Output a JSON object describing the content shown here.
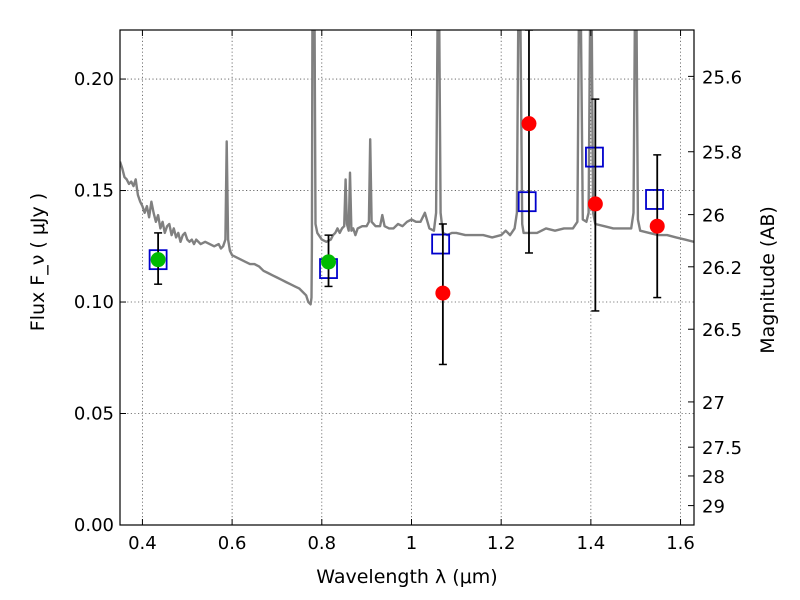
{
  "chart_data": {
    "type": "scatter",
    "title": "",
    "xlabel": "Wavelength  λ (μm)",
    "ylabel": "Flux  F_ν  ( μJy )",
    "ylabel_right": "Magnitude (AB)",
    "xlim": [
      0.35,
      1.63
    ],
    "ylim": [
      0.0,
      0.222
    ],
    "grid": true,
    "x_ticks": [
      0.4,
      0.6,
      0.8,
      1.0,
      1.2,
      1.4,
      1.6
    ],
    "x_tick_labels": [
      "0.4",
      "0.6",
      "0.8",
      "1",
      "1.2",
      "1.4",
      "1.6"
    ],
    "y_ticks": [
      0.0,
      0.05,
      0.1,
      0.15,
      0.2
    ],
    "y_tick_labels": [
      "0.00",
      "0.05",
      "0.10",
      "0.15",
      "0.20"
    ],
    "right_ticks": [
      {
        "label": "25.6",
        "flux": 0.2012
      },
      {
        "label": "25.8",
        "flux": 0.1674
      },
      {
        "label": "26",
        "flux": 0.1392
      },
      {
        "label": "26.2",
        "flux": 0.1158
      },
      {
        "label": "26.5",
        "flux": 0.0878
      },
      {
        "label": "27",
        "flux": 0.0552
      },
      {
        "label": "27.5",
        "flux": 0.0349
      },
      {
        "label": "28",
        "flux": 0.022
      },
      {
        "label": "29",
        "flux": 0.0087
      }
    ],
    "series": [
      {
        "kind": "spectrum",
        "color": "#808080",
        "points": [
          [
            0.35,
            0.163
          ],
          [
            0.355,
            0.16
          ],
          [
            0.36,
            0.156
          ],
          [
            0.365,
            0.155
          ],
          [
            0.37,
            0.153
          ],
          [
            0.375,
            0.154
          ],
          [
            0.38,
            0.152
          ],
          [
            0.385,
            0.155
          ],
          [
            0.39,
            0.148
          ],
          [
            0.395,
            0.145
          ],
          [
            0.4,
            0.143
          ],
          [
            0.405,
            0.14
          ],
          [
            0.41,
            0.143
          ],
          [
            0.415,
            0.138
          ],
          [
            0.42,
            0.145
          ],
          [
            0.425,
            0.14
          ],
          [
            0.43,
            0.136
          ],
          [
            0.435,
            0.139
          ],
          [
            0.44,
            0.133
          ],
          [
            0.445,
            0.136
          ],
          [
            0.45,
            0.131
          ],
          [
            0.455,
            0.134
          ],
          [
            0.46,
            0.135
          ],
          [
            0.465,
            0.13
          ],
          [
            0.47,
            0.133
          ],
          [
            0.475,
            0.129
          ],
          [
            0.48,
            0.131
          ],
          [
            0.485,
            0.127
          ],
          [
            0.49,
            0.13
          ],
          [
            0.495,
            0.131
          ],
          [
            0.5,
            0.128
          ],
          [
            0.505,
            0.127
          ],
          [
            0.51,
            0.128
          ],
          [
            0.515,
            0.126
          ],
          [
            0.52,
            0.128
          ],
          [
            0.53,
            0.126
          ],
          [
            0.54,
            0.127
          ],
          [
            0.55,
            0.126
          ],
          [
            0.56,
            0.125
          ],
          [
            0.57,
            0.126
          ],
          [
            0.575,
            0.124
          ],
          [
            0.58,
            0.125
          ],
          [
            0.585,
            0.128
          ],
          [
            0.588,
            0.172
          ],
          [
            0.591,
            0.128
          ],
          [
            0.595,
            0.123
          ],
          [
            0.6,
            0.121
          ],
          [
            0.61,
            0.12
          ],
          [
            0.62,
            0.119
          ],
          [
            0.63,
            0.118
          ],
          [
            0.64,
            0.117
          ],
          [
            0.65,
            0.117
          ],
          [
            0.66,
            0.116
          ],
          [
            0.67,
            0.114
          ],
          [
            0.68,
            0.113
          ],
          [
            0.69,
            0.112
          ],
          [
            0.7,
            0.111
          ],
          [
            0.71,
            0.11
          ],
          [
            0.72,
            0.109
          ],
          [
            0.73,
            0.108
          ],
          [
            0.74,
            0.107
          ],
          [
            0.75,
            0.106
          ],
          [
            0.76,
            0.104
          ],
          [
            0.765,
            0.103
          ],
          [
            0.77,
            0.1
          ],
          [
            0.775,
            0.099
          ],
          [
            0.777,
            0.102
          ],
          [
            0.778,
            0.125
          ],
          [
            0.779,
            0.222
          ],
          [
            0.784,
            0.222
          ],
          [
            0.786,
            0.135
          ],
          [
            0.79,
            0.131
          ],
          [
            0.8,
            0.128
          ],
          [
            0.81,
            0.127
          ],
          [
            0.82,
            0.128
          ],
          [
            0.825,
            0.13
          ],
          [
            0.83,
            0.131
          ],
          [
            0.835,
            0.133
          ],
          [
            0.84,
            0.131
          ],
          [
            0.845,
            0.133
          ],
          [
            0.85,
            0.134
          ],
          [
            0.853,
            0.155
          ],
          [
            0.856,
            0.135
          ],
          [
            0.86,
            0.132
          ],
          [
            0.863,
            0.158
          ],
          [
            0.866,
            0.132
          ],
          [
            0.87,
            0.133
          ],
          [
            0.875,
            0.13
          ],
          [
            0.88,
            0.133
          ],
          [
            0.89,
            0.134
          ],
          [
            0.9,
            0.134
          ],
          [
            0.905,
            0.136
          ],
          [
            0.908,
            0.173
          ],
          [
            0.911,
            0.136
          ],
          [
            0.92,
            0.134
          ],
          [
            0.93,
            0.134
          ],
          [
            0.935,
            0.139
          ],
          [
            0.94,
            0.134
          ],
          [
            0.95,
            0.133
          ],
          [
            0.96,
            0.133
          ],
          [
            0.97,
            0.135
          ],
          [
            0.98,
            0.134
          ],
          [
            0.99,
            0.136
          ],
          [
            1.0,
            0.137
          ],
          [
            1.01,
            0.136
          ],
          [
            1.02,
            0.136
          ],
          [
            1.03,
            0.14
          ],
          [
            1.04,
            0.133
          ],
          [
            1.05,
            0.132
          ],
          [
            1.055,
            0.14
          ],
          [
            1.058,
            0.222
          ],
          [
            1.062,
            0.222
          ],
          [
            1.065,
            0.14
          ],
          [
            1.07,
            0.131
          ],
          [
            1.08,
            0.13
          ],
          [
            1.09,
            0.131
          ],
          [
            1.1,
            0.131
          ],
          [
            1.12,
            0.13
          ],
          [
            1.14,
            0.13
          ],
          [
            1.16,
            0.13
          ],
          [
            1.18,
            0.129
          ],
          [
            1.2,
            0.13
          ],
          [
            1.21,
            0.132
          ],
          [
            1.22,
            0.13
          ],
          [
            1.23,
            0.133
          ],
          [
            1.235,
            0.14
          ],
          [
            1.238,
            0.222
          ],
          [
            1.243,
            0.222
          ],
          [
            1.247,
            0.135
          ],
          [
            1.25,
            0.131
          ],
          [
            1.27,
            0.131
          ],
          [
            1.28,
            0.131
          ],
          [
            1.29,
            0.132
          ],
          [
            1.3,
            0.133
          ],
          [
            1.32,
            0.132
          ],
          [
            1.34,
            0.133
          ],
          [
            1.36,
            0.133
          ],
          [
            1.37,
            0.136
          ],
          [
            1.373,
            0.222
          ],
          [
            1.378,
            0.222
          ],
          [
            1.382,
            0.137
          ],
          [
            1.39,
            0.136
          ],
          [
            1.395,
            0.14
          ],
          [
            1.398,
            0.222
          ],
          [
            1.402,
            0.222
          ],
          [
            1.405,
            0.14
          ],
          [
            1.41,
            0.135
          ],
          [
            1.43,
            0.134
          ],
          [
            1.45,
            0.133
          ],
          [
            1.47,
            0.133
          ],
          [
            1.49,
            0.133
          ],
          [
            1.495,
            0.14
          ],
          [
            1.498,
            0.222
          ],
          [
            1.502,
            0.222
          ],
          [
            1.505,
            0.137
          ],
          [
            1.51,
            0.132
          ],
          [
            1.53,
            0.131
          ],
          [
            1.55,
            0.13
          ],
          [
            1.57,
            0.13
          ],
          [
            1.59,
            0.129
          ],
          [
            1.61,
            0.128
          ],
          [
            1.63,
            0.127
          ]
        ]
      },
      {
        "kind": "open-square",
        "color": "#0000cc",
        "x": [
          0.435,
          0.815,
          1.065,
          1.258,
          1.408,
          1.542
        ],
        "y": [
          0.119,
          0.115,
          0.126,
          0.145,
          0.165,
          0.146
        ]
      },
      {
        "kind": "filled-circle",
        "color": "#00bb00",
        "x": [
          0.435,
          0.815
        ],
        "y": [
          0.119,
          0.118
        ],
        "err_low": [
          0.108,
          0.107
        ],
        "err_high": [
          0.131,
          0.13
        ]
      },
      {
        "kind": "filled-circle",
        "color": "#ff0000",
        "x": [
          1.07,
          1.262,
          1.41,
          1.548
        ],
        "y": [
          0.104,
          0.18,
          0.144,
          0.134
        ],
        "err_low": [
          0.072,
          0.122,
          0.096,
          0.102
        ],
        "err_high": [
          0.135,
          0.222,
          0.191,
          0.166
        ]
      }
    ]
  }
}
